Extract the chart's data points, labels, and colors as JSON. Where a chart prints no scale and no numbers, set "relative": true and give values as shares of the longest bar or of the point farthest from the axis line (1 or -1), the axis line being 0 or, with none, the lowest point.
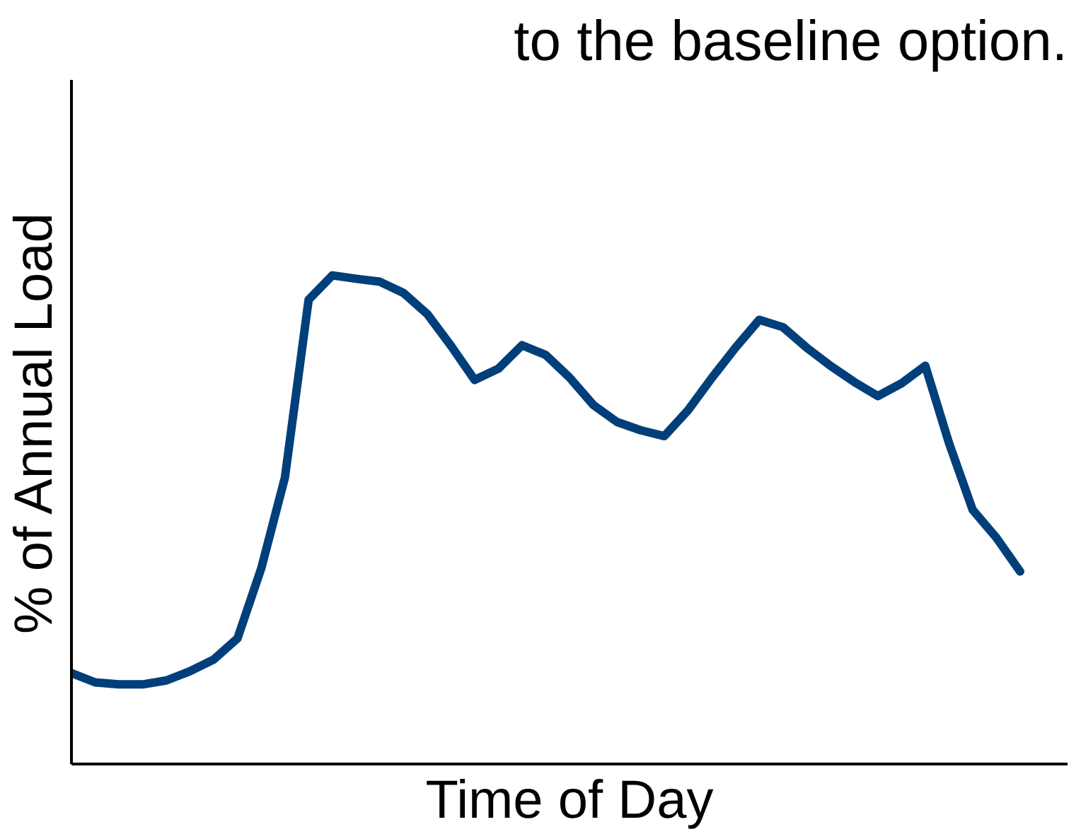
{
  "chart_data": {
    "type": "line",
    "title": "to the baseline option.",
    "xlabel": "Time of Day",
    "ylabel": "% of Annual Load",
    "relative": true,
    "categories": [
      null,
      null,
      null,
      null,
      null,
      null,
      null,
      null,
      null,
      null,
      null,
      null,
      null,
      null,
      null,
      null,
      null,
      null,
      null,
      null,
      null,
      null,
      null,
      null,
      null,
      null,
      null,
      null,
      null,
      null,
      null,
      null,
      null,
      null,
      null,
      null,
      null,
      null,
      null,
      null,
      null
    ],
    "series": [
      {
        "color": "#003f7a",
        "values": [
          0.186,
          0.167,
          0.163,
          0.163,
          0.171,
          0.19,
          0.214,
          0.257,
          0.4,
          0.586,
          0.95,
          1.0,
          0.993,
          0.987,
          0.964,
          0.921,
          0.856,
          0.786,
          0.809,
          0.857,
          0.837,
          0.791,
          0.735,
          0.7,
          0.683,
          0.671,
          0.724,
          0.79,
          0.852,
          0.909,
          0.894,
          0.852,
          0.815,
          0.782,
          0.753,
          0.779,
          0.815,
          0.657,
          0.52,
          0.463,
          0.394
        ]
      }
    ]
  }
}
